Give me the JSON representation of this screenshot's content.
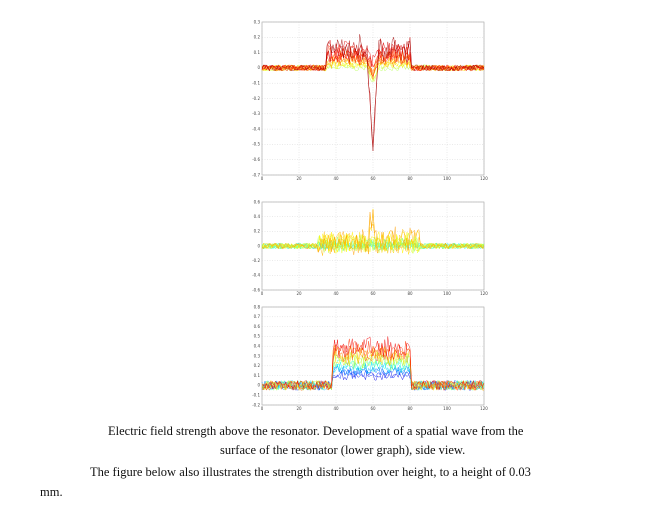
{
  "figure": {
    "panels": [
      {
        "yticks": [
          "0.3",
          "0.2",
          "0.1",
          "0",
          "-0.1",
          "-0.2",
          "-0.3",
          "-0.4",
          "-0.5",
          "-0.6",
          "-0.7"
        ],
        "xticks": [
          "0",
          "20",
          "40",
          "60",
          "80",
          "100",
          "120"
        ],
        "ylim": [
          -0.7,
          0.3
        ],
        "xlim": [
          0,
          120
        ],
        "colormap": "jet"
      },
      {
        "yticks": [
          "0.6",
          "0.4",
          "0.2",
          "0",
          "-0.2",
          "-0.4",
          "-0.6"
        ],
        "xticks": [
          "0",
          "20",
          "40",
          "60",
          "80",
          "100",
          "120"
        ],
        "ylim": [
          -0.6,
          0.6
        ],
        "xlim": [
          0,
          120
        ],
        "colormap": "jet"
      },
      {
        "yticks": [
          "0.8",
          "0.7",
          "0.6",
          "0.5",
          "0.4",
          "0.3",
          "0.2",
          "0.1",
          "0",
          "-0.1",
          "-0.2"
        ],
        "xticks": [
          "0",
          "20",
          "40",
          "60",
          "80",
          "100",
          "120"
        ],
        "ylim": [
          -0.2,
          0.8
        ],
        "xlim": [
          0,
          120
        ],
        "colormap": "jet"
      }
    ]
  },
  "text": {
    "caption_line1": "Electric field strength above the resonator. Development of a spatial wave from the",
    "caption_line2": "surface of the resonator (lower graph), side view.",
    "para_line1": "The figure below also illustrates the strength distribution over height, to a height of 0.03",
    "para_line2": "mm."
  }
}
